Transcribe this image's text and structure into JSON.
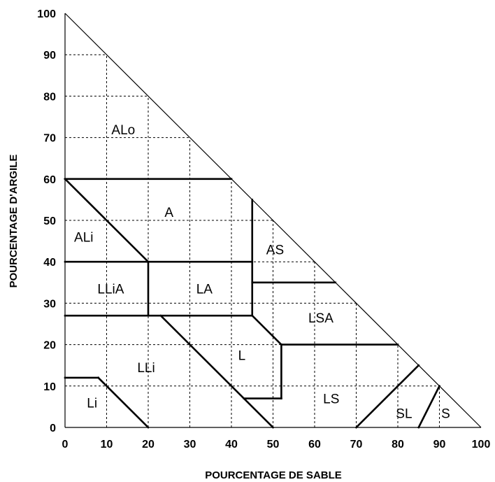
{
  "x_axis": {
    "title": "POURCENTAGE DE SABLE",
    "ticks": [
      "0",
      "10",
      "20",
      "30",
      "40",
      "50",
      "60",
      "70",
      "80",
      "90",
      "100"
    ]
  },
  "y_axis": {
    "title": "POURCENTAGE D'ARGILE",
    "ticks": [
      "0",
      "10",
      "20",
      "30",
      "40",
      "50",
      "60",
      "70",
      "80",
      "90",
      "100"
    ]
  },
  "zones": [
    {
      "id": "alo",
      "label": "ALo",
      "sand": 14,
      "clay": 72
    },
    {
      "id": "a",
      "label": "A",
      "sand": 25,
      "clay": 52
    },
    {
      "id": "ali",
      "label": "ALi",
      "sand": 4.5,
      "clay": 46
    },
    {
      "id": "as",
      "label": "AS",
      "sand": 50.5,
      "clay": 43
    },
    {
      "id": "llia",
      "label": "LLiA",
      "sand": 11,
      "clay": 33.5
    },
    {
      "id": "la",
      "label": "LA",
      "sand": 33.5,
      "clay": 33.5
    },
    {
      "id": "lsa",
      "label": "LSA",
      "sand": 61.5,
      "clay": 26.5
    },
    {
      "id": "l",
      "label": "L",
      "sand": 42.5,
      "clay": 17.5
    },
    {
      "id": "lli",
      "label": "LLi",
      "sand": 19.5,
      "clay": 14.5
    },
    {
      "id": "li",
      "label": "Li",
      "sand": 6.5,
      "clay": 6
    },
    {
      "id": "ls",
      "label": "LS",
      "sand": 64,
      "clay": 7
    },
    {
      "id": "sl",
      "label": "SL",
      "sand": 81.5,
      "clay": 3.5
    },
    {
      "id": "s",
      "label": "S",
      "sand": 91.5,
      "clay": 3.5
    }
  ],
  "boundaries": [
    [
      [
        0,
        60
      ],
      [
        40,
        60
      ]
    ],
    [
      [
        0,
        60
      ],
      [
        20,
        40
      ]
    ],
    [
      [
        45,
        55
      ],
      [
        45,
        27
      ]
    ],
    [
      [
        0,
        40
      ],
      [
        45,
        40
      ]
    ],
    [
      [
        45,
        35
      ],
      [
        65,
        35
      ]
    ],
    [
      [
        20,
        40
      ],
      [
        20,
        27
      ]
    ],
    [
      [
        0,
        27
      ],
      [
        45,
        27
      ]
    ],
    [
      [
        45,
        27
      ],
      [
        52,
        20
      ]
    ],
    [
      [
        52,
        20
      ],
      [
        80,
        20
      ]
    ],
    [
      [
        52,
        20
      ],
      [
        52,
        7
      ]
    ],
    [
      [
        23,
        27
      ],
      [
        50,
        0
      ]
    ],
    [
      [
        43,
        7
      ],
      [
        52,
        7
      ]
    ],
    [
      [
        0,
        12
      ],
      [
        8,
        12
      ]
    ],
    [
      [
        8,
        12
      ],
      [
        20,
        0
      ]
    ],
    [
      [
        70,
        0
      ],
      [
        85,
        15
      ]
    ],
    [
      [
        85,
        0
      ],
      [
        90,
        10
      ]
    ]
  ]
}
